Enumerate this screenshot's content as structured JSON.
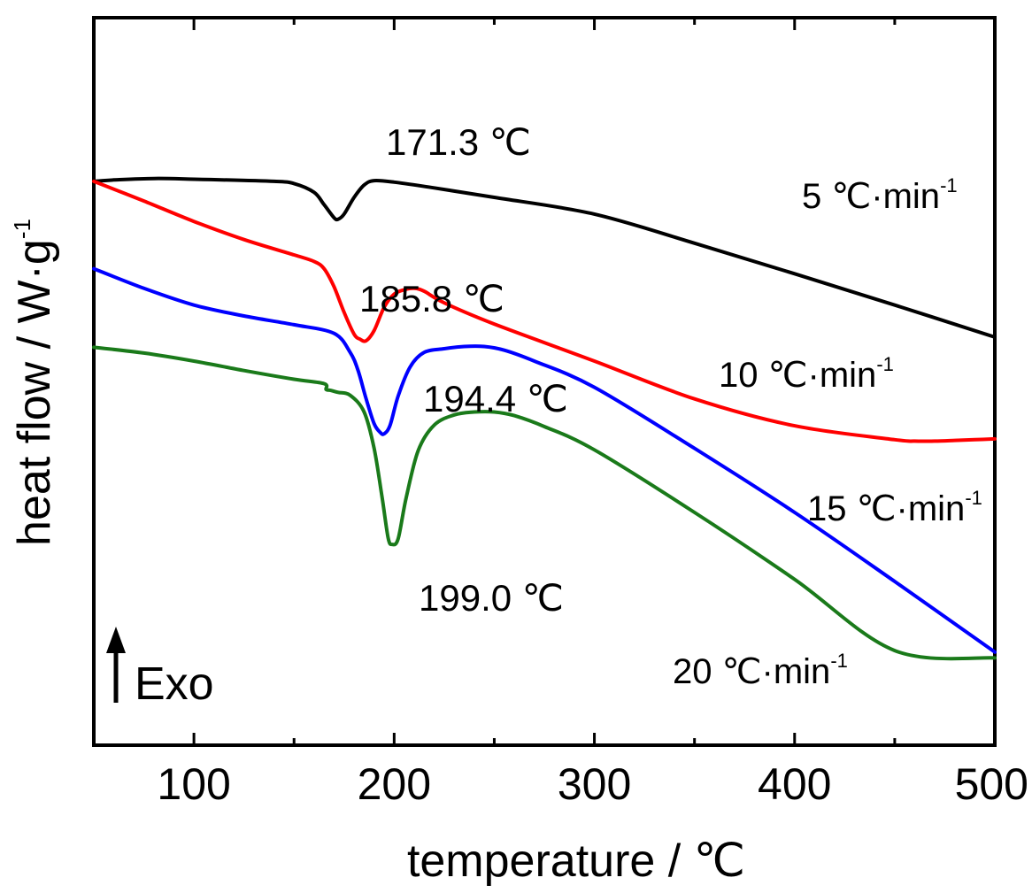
{
  "chart_data": {
    "type": "line",
    "xlabel": "temperature / ℃",
    "ylabel": "heat flow / W·g",
    "ylabel_superscript": "-1",
    "xlim": [
      50,
      500
    ],
    "x_ticks": [
      "100",
      "200",
      "300",
      "400",
      "500"
    ],
    "y_ticks": [],
    "grid": false,
    "y_units": "arbitrary (no y tick labels; curves offset vertically)",
    "exo_label": "Exo",
    "exo_direction": "up",
    "series": [
      {
        "name": "5 ℃·min",
        "name_superscript": "-1",
        "color": "#000000",
        "x": [
          50,
          60,
          80,
          100,
          140,
          150,
          160,
          165,
          170,
          172,
          175,
          180,
          185,
          190,
          200,
          220,
          250,
          300,
          350,
          400,
          450,
          500
        ],
        "y": [
          77.5,
          77.7,
          77.9,
          77.8,
          77.5,
          77.2,
          76.0,
          74.3,
          72.5,
          72.3,
          73.0,
          75.3,
          77.0,
          77.6,
          77.4,
          76.6,
          75.3,
          73.0,
          69.0,
          64.8,
          60.5,
          56.1
        ],
        "peak": {
          "x": 171.3,
          "label": "171.3 ℃"
        }
      },
      {
        "name": "10 ℃·min",
        "name_superscript": "-1",
        "color": "#ff0000",
        "x": [
          50,
          75,
          100,
          125,
          150,
          160,
          165,
          170,
          175,
          180,
          183,
          186,
          190,
          195,
          200,
          205,
          210,
          215,
          225,
          250,
          300,
          350,
          400,
          450,
          460,
          470,
          480,
          490,
          500
        ],
        "y": [
          77.5,
          74.8,
          72.0,
          69.5,
          67.4,
          66.5,
          65.5,
          63.0,
          59.5,
          56.5,
          55.8,
          55.6,
          57.0,
          60.2,
          62.0,
          62.6,
          62.8,
          62.4,
          60.8,
          57.9,
          52.8,
          47.6,
          43.9,
          42.0,
          41.8,
          41.8,
          41.9,
          42.0,
          42.1
        ],
        "peak": {
          "x": 185.8,
          "label": "185.8 ℃"
        }
      },
      {
        "name": "15 ℃·min",
        "name_superscript": "-1",
        "color": "#0000ff",
        "x": [
          50,
          75,
          100,
          125,
          150,
          170,
          178,
          182,
          186,
          190,
          193,
          195,
          198,
          202,
          208,
          215,
          225,
          235,
          245,
          255,
          270,
          300,
          350,
          400,
          450,
          500
        ],
        "y": [
          65.5,
          62.8,
          60.5,
          59.0,
          57.8,
          56.6,
          54.0,
          51.5,
          47.6,
          44.2,
          43.0,
          42.8,
          44.0,
          48.0,
          52.0,
          54.0,
          54.5,
          54.8,
          54.8,
          54.3,
          52.8,
          49.2,
          40.8,
          32.0,
          22.5,
          12.8
        ],
        "peak": {
          "x": 194.4,
          "label": "194.4 ℃"
        }
      },
      {
        "name": "20 ℃·min",
        "name_superscript": "-1",
        "color": "#1a7a1a",
        "x": [
          50,
          75,
          100,
          125,
          150,
          165,
          166,
          168,
          172,
          178,
          185,
          190,
          194,
          197,
          199,
          202,
          206,
          212,
          220,
          230,
          240,
          250,
          260,
          275,
          300,
          350,
          400,
          450,
          500
        ],
        "y": [
          54.7,
          53.9,
          52.8,
          51.5,
          50.3,
          49.7,
          48.9,
          48.8,
          48.5,
          48.1,
          45.8,
          40.8,
          34.0,
          28.5,
          27.6,
          28.4,
          34.0,
          40.5,
          44.0,
          45.4,
          45.8,
          45.8,
          45.3,
          43.8,
          40.6,
          32.0,
          22.8,
          13.0,
          12.0
        ],
        "peak": {
          "x": 199.0,
          "label": "199.0 ℃"
        }
      }
    ]
  }
}
